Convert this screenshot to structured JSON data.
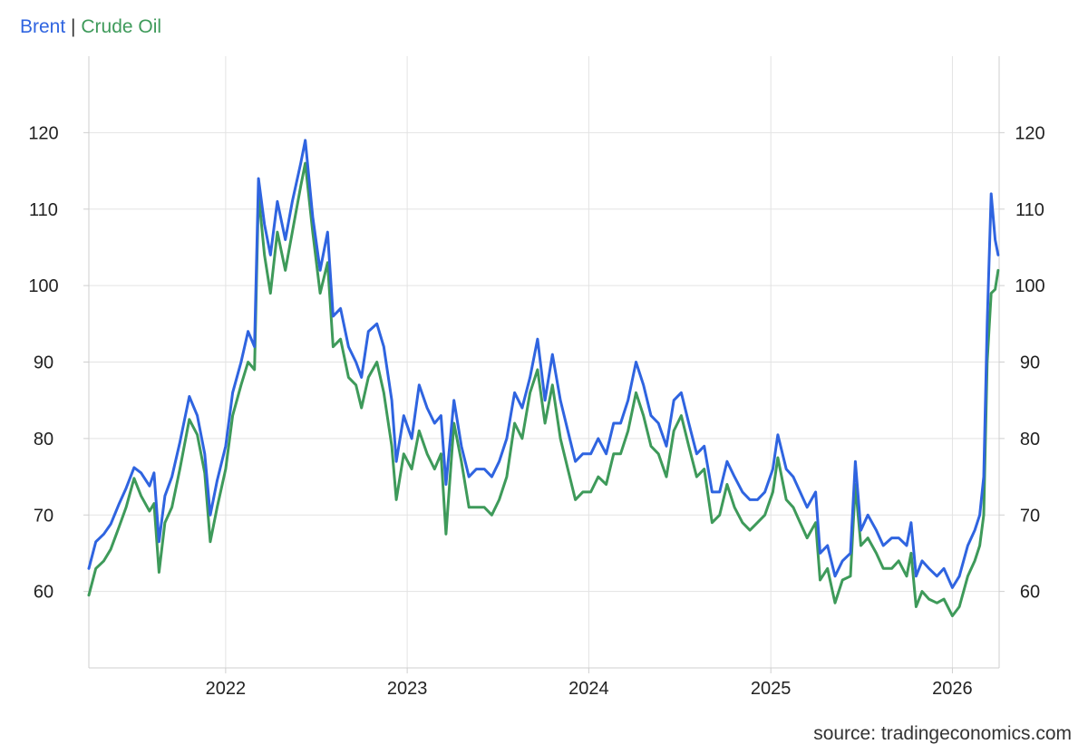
{
  "legend": {
    "brent_label": "Brent",
    "separator": "|",
    "crude_label": "Crude Oil"
  },
  "source_text": "source: tradingeconomics.com",
  "colors": {
    "brent": "#2f64e0",
    "crude": "#3e9a5a",
    "grid": "#e3e3e3",
    "axis": "#cfcfcf"
  },
  "chart_data": {
    "type": "line",
    "grid": true,
    "legend_position": "top-left",
    "x_ticks": [
      "2022",
      "2023",
      "2024",
      "2025",
      "2026"
    ],
    "y_ticks": [
      60,
      70,
      80,
      90,
      100,
      110,
      120
    ],
    "ylim": [
      50,
      130
    ],
    "xlim": [
      "2021-04-01",
      "2026-04-05"
    ],
    "series": [
      {
        "name": "Brent",
        "color": "#2f64e0",
        "points": [
          [
            "2021-04-01",
            63
          ],
          [
            "2021-04-15",
            66.5
          ],
          [
            "2021-05-01",
            67.5
          ],
          [
            "2021-05-15",
            68.8
          ],
          [
            "2021-06-01",
            71.5
          ],
          [
            "2021-06-15",
            73.5
          ],
          [
            "2021-07-01",
            76.2
          ],
          [
            "2021-07-15",
            75.5
          ],
          [
            "2021-08-01",
            73.8
          ],
          [
            "2021-08-10",
            75.5
          ],
          [
            "2021-08-20",
            66.5
          ],
          [
            "2021-09-01",
            72.5
          ],
          [
            "2021-09-15",
            75
          ],
          [
            "2021-10-01",
            79.5
          ],
          [
            "2021-10-20",
            85.5
          ],
          [
            "2021-11-05",
            83
          ],
          [
            "2021-11-20",
            78
          ],
          [
            "2021-12-01",
            70
          ],
          [
            "2021-12-15",
            74.5
          ],
          [
            "2022-01-01",
            79
          ],
          [
            "2022-01-15",
            86
          ],
          [
            "2022-02-01",
            90
          ],
          [
            "2022-02-15",
            94
          ],
          [
            "2022-02-28",
            92
          ],
          [
            "2022-03-08",
            114
          ],
          [
            "2022-03-20",
            108
          ],
          [
            "2022-04-01",
            104
          ],
          [
            "2022-04-15",
            111
          ],
          [
            "2022-05-01",
            106
          ],
          [
            "2022-05-15",
            111
          ],
          [
            "2022-06-01",
            116
          ],
          [
            "2022-06-10",
            119
          ],
          [
            "2022-06-25",
            109
          ],
          [
            "2022-07-10",
            102
          ],
          [
            "2022-07-25",
            107
          ],
          [
            "2022-08-05",
            96
          ],
          [
            "2022-08-20",
            97
          ],
          [
            "2022-09-05",
            92
          ],
          [
            "2022-09-20",
            90
          ],
          [
            "2022-10-01",
            88
          ],
          [
            "2022-10-15",
            94
          ],
          [
            "2022-11-01",
            95
          ],
          [
            "2022-11-15",
            92
          ],
          [
            "2022-12-01",
            85
          ],
          [
            "2022-12-10",
            77
          ],
          [
            "2022-12-25",
            83
          ],
          [
            "2023-01-10",
            80
          ],
          [
            "2023-01-25",
            87
          ],
          [
            "2023-02-10",
            84
          ],
          [
            "2023-02-25",
            82
          ],
          [
            "2023-03-10",
            83
          ],
          [
            "2023-03-20",
            74
          ],
          [
            "2023-04-05",
            85
          ],
          [
            "2023-04-20",
            79
          ],
          [
            "2023-05-05",
            75
          ],
          [
            "2023-05-20",
            76
          ],
          [
            "2023-06-05",
            76
          ],
          [
            "2023-06-20",
            75
          ],
          [
            "2023-07-05",
            77
          ],
          [
            "2023-07-20",
            80
          ],
          [
            "2023-08-05",
            86
          ],
          [
            "2023-08-20",
            84
          ],
          [
            "2023-09-05",
            88
          ],
          [
            "2023-09-20",
            93
          ],
          [
            "2023-10-05",
            85
          ],
          [
            "2023-10-20",
            91
          ],
          [
            "2023-11-05",
            85
          ],
          [
            "2023-11-20",
            81
          ],
          [
            "2023-12-05",
            77
          ],
          [
            "2023-12-20",
            78
          ],
          [
            "2024-01-05",
            78
          ],
          [
            "2024-01-20",
            80
          ],
          [
            "2024-02-05",
            78
          ],
          [
            "2024-02-20",
            82
          ],
          [
            "2024-03-05",
            82
          ],
          [
            "2024-03-20",
            85
          ],
          [
            "2024-04-05",
            90
          ],
          [
            "2024-04-20",
            87
          ],
          [
            "2024-05-05",
            83
          ],
          [
            "2024-05-20",
            82
          ],
          [
            "2024-06-05",
            79
          ],
          [
            "2024-06-20",
            85
          ],
          [
            "2024-07-05",
            86
          ],
          [
            "2024-07-20",
            82
          ],
          [
            "2024-08-05",
            78
          ],
          [
            "2024-08-20",
            79
          ],
          [
            "2024-09-05",
            73
          ],
          [
            "2024-09-20",
            73
          ],
          [
            "2024-10-05",
            77
          ],
          [
            "2024-10-20",
            75
          ],
          [
            "2024-11-05",
            73
          ],
          [
            "2024-11-20",
            72
          ],
          [
            "2024-12-05",
            72
          ],
          [
            "2024-12-20",
            73
          ],
          [
            "2025-01-05",
            76
          ],
          [
            "2025-01-15",
            80.5
          ],
          [
            "2025-02-01",
            76
          ],
          [
            "2025-02-15",
            75
          ],
          [
            "2025-03-01",
            73
          ],
          [
            "2025-03-15",
            71
          ],
          [
            "2025-04-01",
            73
          ],
          [
            "2025-04-10",
            65
          ],
          [
            "2025-04-25",
            66
          ],
          [
            "2025-05-10",
            62
          ],
          [
            "2025-05-25",
            64
          ],
          [
            "2025-06-10",
            65
          ],
          [
            "2025-06-20",
            77
          ],
          [
            "2025-07-01",
            68
          ],
          [
            "2025-07-15",
            70
          ],
          [
            "2025-08-01",
            68
          ],
          [
            "2025-08-15",
            66
          ],
          [
            "2025-09-01",
            67
          ],
          [
            "2025-09-15",
            67
          ],
          [
            "2025-10-01",
            66
          ],
          [
            "2025-10-10",
            69
          ],
          [
            "2025-10-20",
            62
          ],
          [
            "2025-11-01",
            64
          ],
          [
            "2025-11-15",
            63
          ],
          [
            "2025-12-01",
            62
          ],
          [
            "2025-12-15",
            63
          ],
          [
            "2026-01-01",
            60.5
          ],
          [
            "2026-01-15",
            62
          ],
          [
            "2026-02-01",
            66
          ],
          [
            "2026-02-15",
            68
          ],
          [
            "2026-02-25",
            70
          ],
          [
            "2026-03-05",
            75
          ],
          [
            "2026-03-12",
            95
          ],
          [
            "2026-03-20",
            112
          ],
          [
            "2026-03-28",
            106
          ],
          [
            "2026-04-03",
            104
          ]
        ]
      },
      {
        "name": "Crude Oil",
        "color": "#3e9a5a",
        "points": [
          [
            "2021-04-01",
            59.5
          ],
          [
            "2021-04-15",
            63
          ],
          [
            "2021-05-01",
            64
          ],
          [
            "2021-05-15",
            65.5
          ],
          [
            "2021-06-01",
            68.5
          ],
          [
            "2021-06-15",
            71
          ],
          [
            "2021-07-01",
            74.8
          ],
          [
            "2021-07-15",
            72.5
          ],
          [
            "2021-08-01",
            70.5
          ],
          [
            "2021-08-10",
            71.5
          ],
          [
            "2021-08-20",
            62.5
          ],
          [
            "2021-09-01",
            69
          ],
          [
            "2021-09-15",
            71
          ],
          [
            "2021-10-01",
            76
          ],
          [
            "2021-10-20",
            82.5
          ],
          [
            "2021-11-05",
            80.5
          ],
          [
            "2021-11-20",
            75.5
          ],
          [
            "2021-12-01",
            66.5
          ],
          [
            "2021-12-15",
            71
          ],
          [
            "2022-01-01",
            76
          ],
          [
            "2022-01-15",
            83
          ],
          [
            "2022-02-01",
            87
          ],
          [
            "2022-02-15",
            90
          ],
          [
            "2022-02-28",
            89
          ],
          [
            "2022-03-08",
            112
          ],
          [
            "2022-03-20",
            104
          ],
          [
            "2022-04-01",
            99
          ],
          [
            "2022-04-15",
            107
          ],
          [
            "2022-05-01",
            102
          ],
          [
            "2022-05-15",
            107
          ],
          [
            "2022-06-01",
            113
          ],
          [
            "2022-06-10",
            116
          ],
          [
            "2022-06-25",
            107
          ],
          [
            "2022-07-10",
            99
          ],
          [
            "2022-07-25",
            103
          ],
          [
            "2022-08-05",
            92
          ],
          [
            "2022-08-20",
            93
          ],
          [
            "2022-09-05",
            88
          ],
          [
            "2022-09-20",
            87
          ],
          [
            "2022-10-01",
            84
          ],
          [
            "2022-10-15",
            88
          ],
          [
            "2022-11-01",
            90
          ],
          [
            "2022-11-15",
            86
          ],
          [
            "2022-12-01",
            79
          ],
          [
            "2022-12-10",
            72
          ],
          [
            "2022-12-25",
            78
          ],
          [
            "2023-01-10",
            76
          ],
          [
            "2023-01-25",
            81
          ],
          [
            "2023-02-10",
            78
          ],
          [
            "2023-02-25",
            76
          ],
          [
            "2023-03-10",
            78
          ],
          [
            "2023-03-20",
            67.5
          ],
          [
            "2023-04-05",
            82
          ],
          [
            "2023-04-20",
            77
          ],
          [
            "2023-05-05",
            71
          ],
          [
            "2023-05-20",
            71
          ],
          [
            "2023-06-05",
            71
          ],
          [
            "2023-06-20",
            70
          ],
          [
            "2023-07-05",
            72
          ],
          [
            "2023-07-20",
            75
          ],
          [
            "2023-08-05",
            82
          ],
          [
            "2023-08-20",
            80
          ],
          [
            "2023-09-05",
            86
          ],
          [
            "2023-09-20",
            89
          ],
          [
            "2023-10-05",
            82
          ],
          [
            "2023-10-20",
            87
          ],
          [
            "2023-11-05",
            80
          ],
          [
            "2023-11-20",
            76
          ],
          [
            "2023-12-05",
            72
          ],
          [
            "2023-12-20",
            73
          ],
          [
            "2024-01-05",
            73
          ],
          [
            "2024-01-20",
            75
          ],
          [
            "2024-02-05",
            74
          ],
          [
            "2024-02-20",
            78
          ],
          [
            "2024-03-05",
            78
          ],
          [
            "2024-03-20",
            81
          ],
          [
            "2024-04-05",
            86
          ],
          [
            "2024-04-20",
            83
          ],
          [
            "2024-05-05",
            79
          ],
          [
            "2024-05-20",
            78
          ],
          [
            "2024-06-05",
            75
          ],
          [
            "2024-06-20",
            81
          ],
          [
            "2024-07-05",
            83
          ],
          [
            "2024-07-20",
            79
          ],
          [
            "2024-08-05",
            75
          ],
          [
            "2024-08-20",
            76
          ],
          [
            "2024-09-05",
            69
          ],
          [
            "2024-09-20",
            70
          ],
          [
            "2024-10-05",
            74
          ],
          [
            "2024-10-20",
            71
          ],
          [
            "2024-11-05",
            69
          ],
          [
            "2024-11-20",
            68
          ],
          [
            "2024-12-05",
            69
          ],
          [
            "2024-12-20",
            70
          ],
          [
            "2025-01-05",
            73
          ],
          [
            "2025-01-15",
            77.5
          ],
          [
            "2025-02-01",
            72
          ],
          [
            "2025-02-15",
            71
          ],
          [
            "2025-03-01",
            69
          ],
          [
            "2025-03-15",
            67
          ],
          [
            "2025-04-01",
            69
          ],
          [
            "2025-04-10",
            61.5
          ],
          [
            "2025-04-25",
            63
          ],
          [
            "2025-05-10",
            58.5
          ],
          [
            "2025-05-25",
            61.5
          ],
          [
            "2025-06-10",
            62
          ],
          [
            "2025-06-20",
            74
          ],
          [
            "2025-07-01",
            66
          ],
          [
            "2025-07-15",
            67
          ],
          [
            "2025-08-01",
            65
          ],
          [
            "2025-08-15",
            63
          ],
          [
            "2025-09-01",
            63
          ],
          [
            "2025-09-15",
            64
          ],
          [
            "2025-10-01",
            62
          ],
          [
            "2025-10-10",
            65
          ],
          [
            "2025-10-20",
            58
          ],
          [
            "2025-11-01",
            60
          ],
          [
            "2025-11-15",
            59
          ],
          [
            "2025-12-01",
            58.5
          ],
          [
            "2025-12-15",
            59
          ],
          [
            "2026-01-01",
            56.8
          ],
          [
            "2026-01-15",
            58
          ],
          [
            "2026-02-01",
            62
          ],
          [
            "2026-02-15",
            64
          ],
          [
            "2026-02-25",
            66
          ],
          [
            "2026-03-05",
            70
          ],
          [
            "2026-03-12",
            90
          ],
          [
            "2026-03-20",
            99
          ],
          [
            "2026-03-28",
            99.5
          ],
          [
            "2026-04-03",
            102
          ]
        ]
      }
    ]
  }
}
